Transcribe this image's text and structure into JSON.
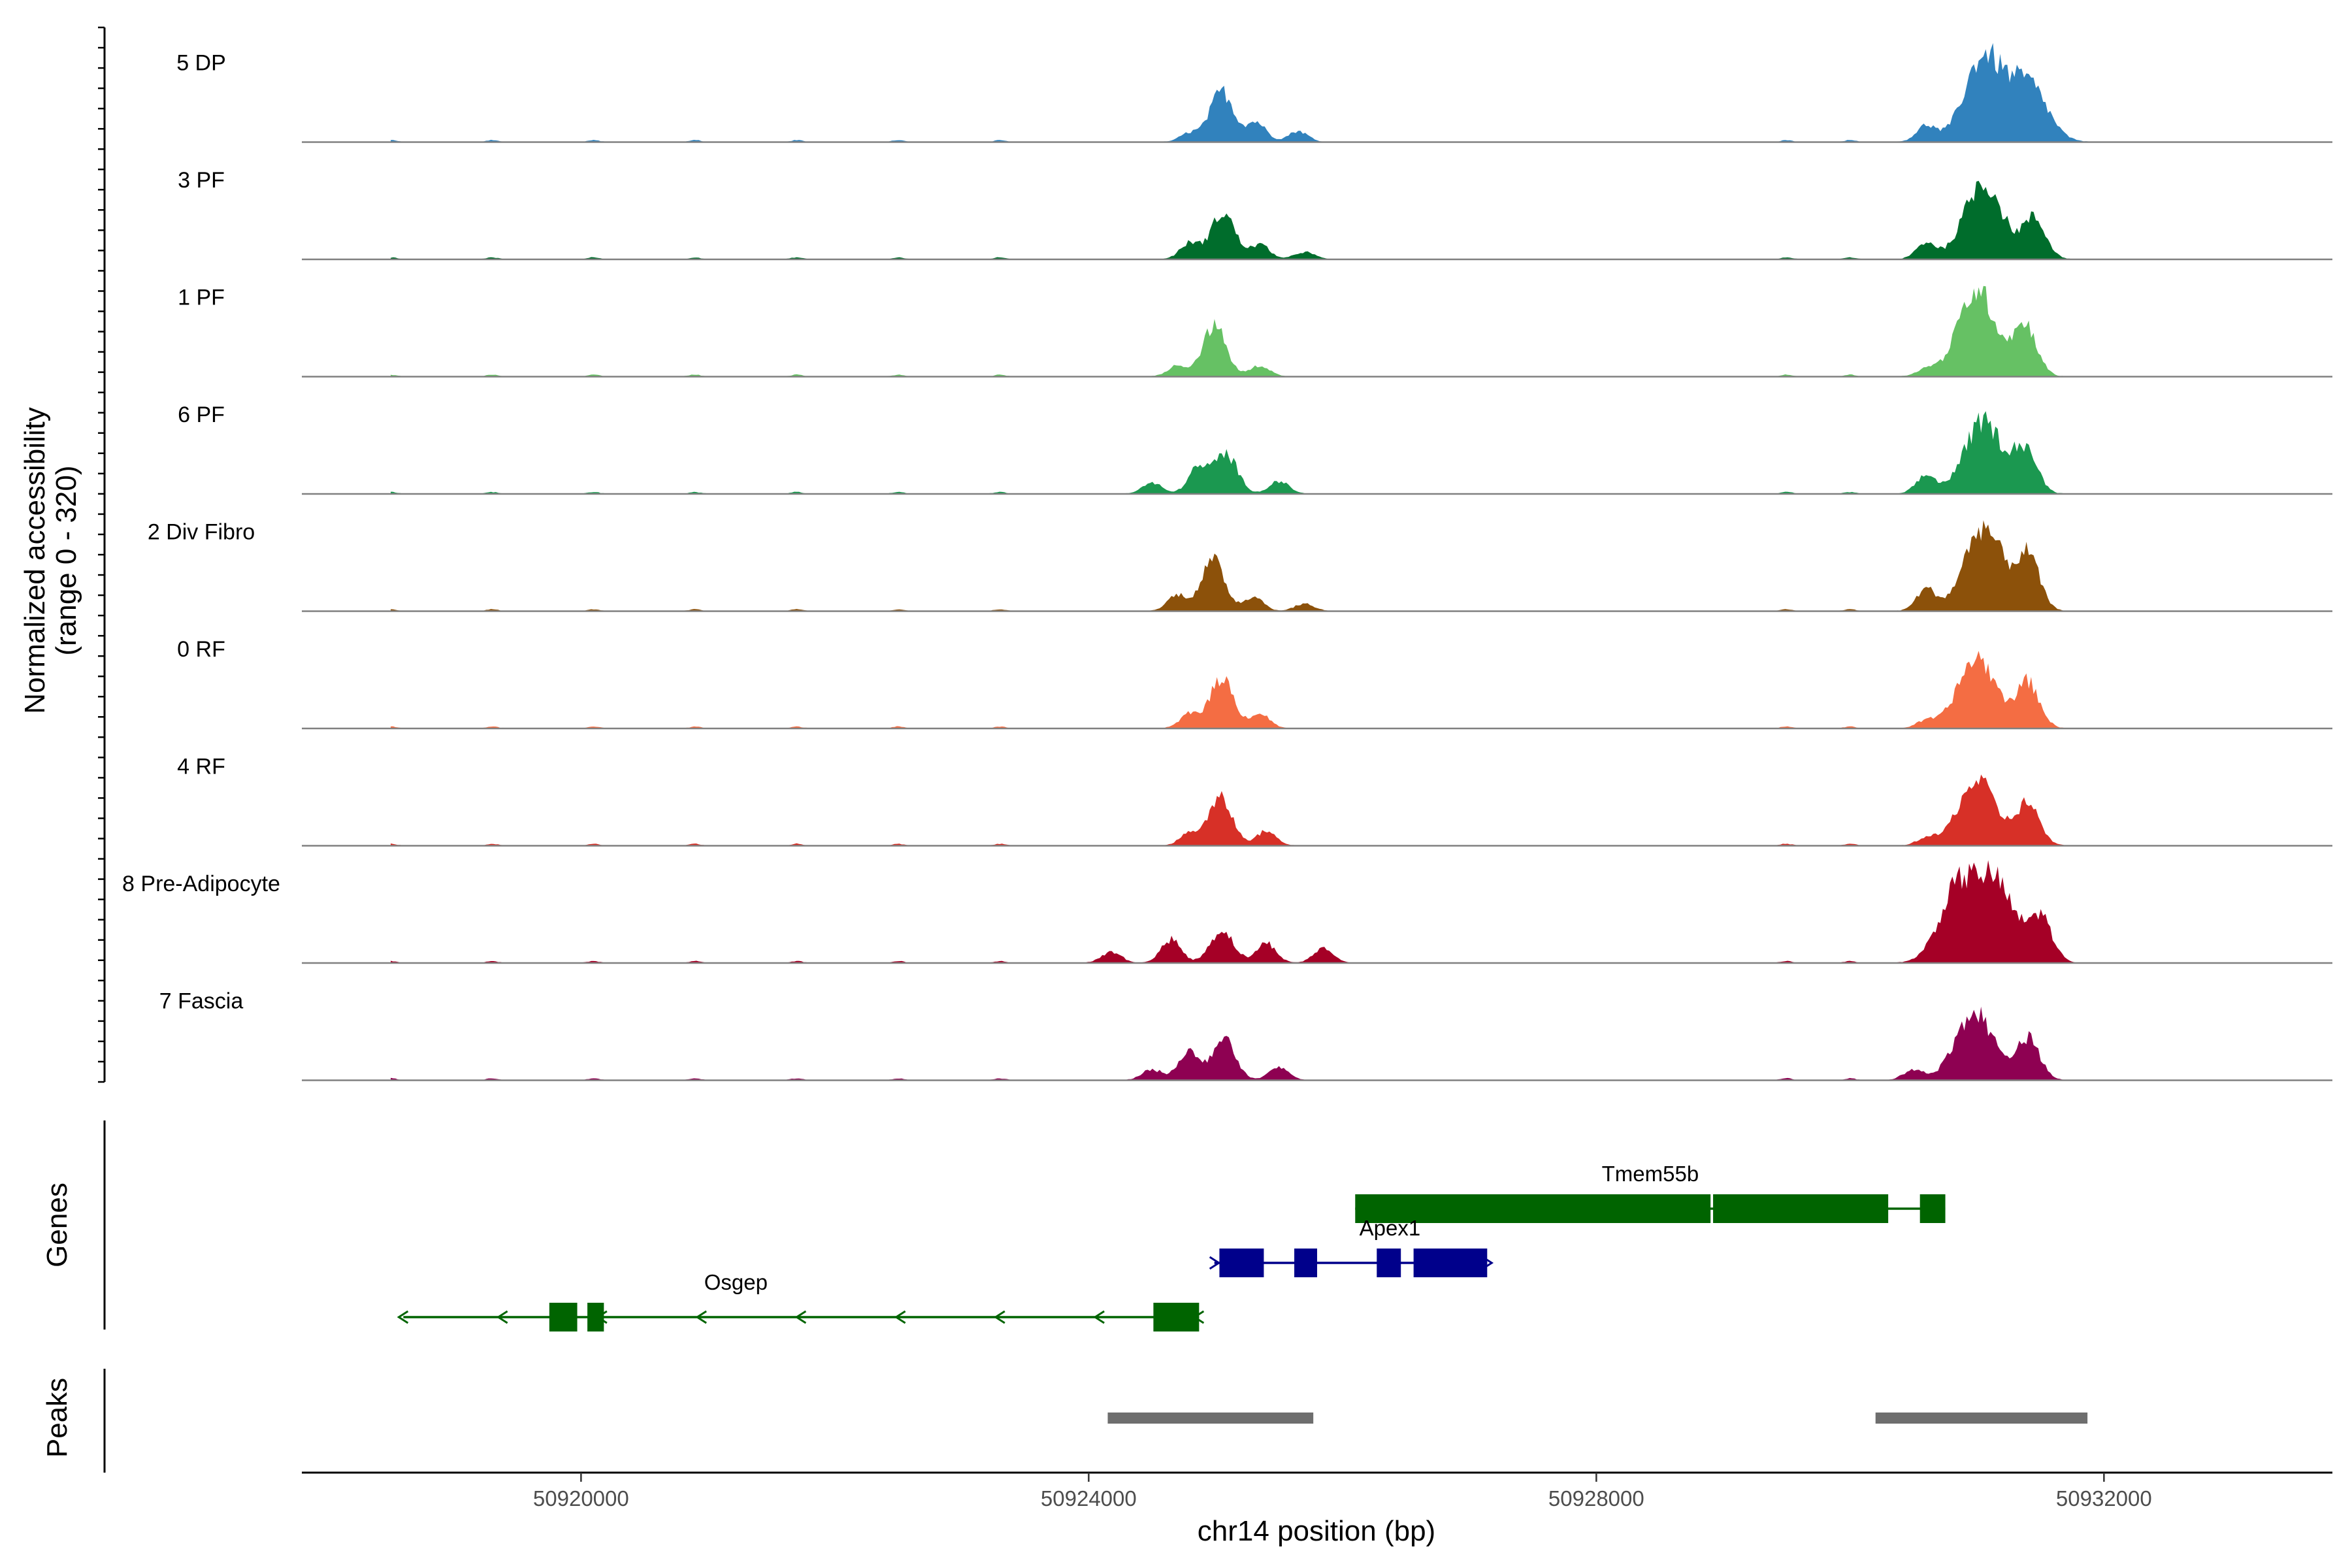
{
  "chart_data": {
    "type": "area",
    "y_axis_label_line1": "Normalized accessibility",
    "y_axis_label_line2": "(range 0 - 320)",
    "ylim": [
      0,
      320
    ],
    "x_axis_label": "chr14 position (bp)",
    "xlim": [
      50917800,
      50933800
    ],
    "x_ticks": [
      50920000,
      50924000,
      50928000,
      50932000
    ],
    "x_tick_labels": [
      "50920000",
      "50924000",
      "50928000",
      "50932000"
    ],
    "track_labels": {
      "genes": "Genes",
      "peaks": "Peaks"
    },
    "background_bumps": [
      50918500,
      50919300,
      50920100,
      50920900,
      50921700,
      50922500,
      50923300,
      50929500,
      50930000
    ],
    "series": [
      {
        "name": "5 DP",
        "color": "#3182BD",
        "peaks": [
          [
            50924800,
            25
          ],
          [
            50925050,
            140
          ],
          [
            50925320,
            55
          ],
          [
            50925650,
            30
          ],
          [
            50930600,
            45
          ],
          [
            50931050,
            235
          ],
          [
            50931400,
            160
          ]
        ]
      },
      {
        "name": "3 PF",
        "color": "#006D2C",
        "peaks": [
          [
            50924800,
            45
          ],
          [
            50925060,
            130
          ],
          [
            50925350,
            40
          ],
          [
            50925700,
            20
          ],
          [
            50930600,
            45
          ],
          [
            50931050,
            215
          ],
          [
            50931450,
            110
          ]
        ]
      },
      {
        "name": "1 PF",
        "color": "#66C164",
        "peaks": [
          [
            50924700,
            30
          ],
          [
            50924990,
            140
          ],
          [
            50925350,
            30
          ],
          [
            50930600,
            20
          ],
          [
            50931000,
            240
          ],
          [
            50931380,
            140
          ]
        ]
      },
      {
        "name": "6 PF",
        "color": "#1B9850",
        "peaks": [
          [
            50924500,
            30
          ],
          [
            50924860,
            70
          ],
          [
            50925080,
            110
          ],
          [
            50925500,
            35
          ],
          [
            50930600,
            50
          ],
          [
            50931050,
            200
          ],
          [
            50931380,
            120
          ]
        ]
      },
      {
        "name": "2 Div Fibro",
        "color": "#8C510A",
        "peaks": [
          [
            50924700,
            45
          ],
          [
            50924980,
            140
          ],
          [
            50925300,
            40
          ],
          [
            50925700,
            20
          ],
          [
            50930600,
            60
          ],
          [
            50931050,
            235
          ],
          [
            50931400,
            150
          ]
        ]
      },
      {
        "name": "0 RF",
        "color": "#F46D43",
        "peaks": [
          [
            50924800,
            40
          ],
          [
            50925050,
            140
          ],
          [
            50925350,
            40
          ],
          [
            50930600,
            20
          ],
          [
            50931000,
            195
          ],
          [
            50931400,
            125
          ]
        ]
      },
      {
        "name": "4 RF",
        "color": "#D73027",
        "peaks": [
          [
            50924800,
            35
          ],
          [
            50925040,
            130
          ],
          [
            50925400,
            40
          ],
          [
            50930600,
            20
          ],
          [
            50931000,
            180
          ],
          [
            50931400,
            115
          ]
        ]
      },
      {
        "name": "8 Pre-Adipocyte",
        "color": "#A50026",
        "peaks": [
          [
            50924180,
            30
          ],
          [
            50924650,
            65
          ],
          [
            50925050,
            90
          ],
          [
            50925400,
            55
          ],
          [
            50925850,
            40
          ],
          [
            50930850,
            200
          ],
          [
            50931150,
            210
          ],
          [
            50931500,
            125
          ]
        ]
      },
      {
        "name": "7 Fascia",
        "color": "#8E0152",
        "peaks": [
          [
            50924500,
            30
          ],
          [
            50924780,
            80
          ],
          [
            50925060,
            115
          ],
          [
            50925500,
            35
          ],
          [
            50930500,
            30
          ],
          [
            50930980,
            190
          ],
          [
            50931400,
            115
          ]
        ]
      }
    ],
    "genes": [
      {
        "name": "Tmem55b",
        "color": "#006400",
        "strand": "",
        "row": 0,
        "start": 50926100,
        "end": 50930750,
        "exons": [
          [
            50926100,
            50928900
          ],
          [
            50928920,
            50930300
          ],
          [
            50930550,
            50930750
          ]
        ]
      },
      {
        "name": "Apex1",
        "color": "#00008B",
        "strand": "+",
        "row": 1,
        "start": 50924990,
        "end": 50927140,
        "exons": [
          [
            50925030,
            50925380
          ],
          [
            50925620,
            50925800
          ],
          [
            50926270,
            50926460
          ],
          [
            50926560,
            50927140
          ]
        ]
      },
      {
        "name": "Osgep",
        "color": "#006400",
        "strand": "-",
        "row": 2,
        "start": 50918600,
        "end": 50924870,
        "exons": [
          [
            50919750,
            50919970
          ],
          [
            50920050,
            50920180
          ],
          [
            50924510,
            50924870
          ]
        ]
      }
    ],
    "peaks_track": {
      "color": "#6E6E6E",
      "regions": [
        [
          50924150,
          50925770
        ],
        [
          50930200,
          50931870
        ]
      ]
    }
  }
}
